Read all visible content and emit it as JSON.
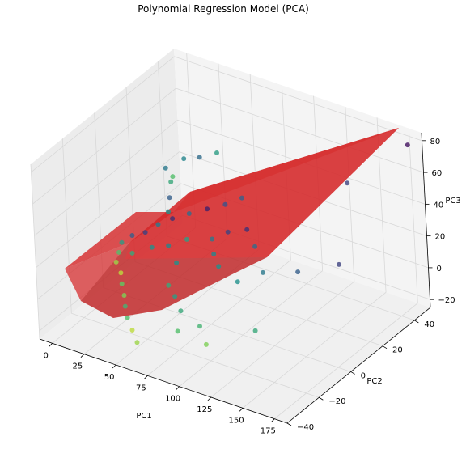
{
  "chart_data": {
    "type": "scatter",
    "title": "Polynomial Regression Model (PCA)",
    "xlabel": "PC1",
    "ylabel": "PC2",
    "zlabel": "PC3",
    "x_ticks": [
      "0",
      "25",
      "50",
      "75",
      "100",
      "125",
      "150",
      "175"
    ],
    "y_ticks": [
      "40",
      "20",
      "0",
      "−20",
      "−40"
    ],
    "z_ticks": [
      "80",
      "60",
      "40",
      "20",
      "0",
      "−20"
    ],
    "xlim": [
      -10,
      185
    ],
    "ylim": [
      -40,
      50
    ],
    "zlim": [
      -25,
      85
    ],
    "grid": true,
    "surface_color": "#d62728",
    "pane_color": "#f2f2f2",
    "points": [
      [
        0,
        5,
        2,
        0.55
      ],
      [
        2,
        10,
        3,
        0.3
      ],
      [
        4,
        0,
        1,
        0.7
      ],
      [
        6,
        15,
        2,
        0.2
      ],
      [
        8,
        -5,
        0,
        0.85
      ],
      [
        10,
        20,
        4,
        0.4
      ],
      [
        12,
        2,
        1,
        0.6
      ],
      [
        15,
        25,
        5,
        0.15
      ],
      [
        18,
        -10,
        0,
        0.9
      ],
      [
        20,
        8,
        2,
        0.5
      ],
      [
        22,
        30,
        6,
        0.35
      ],
      [
        25,
        -15,
        -1,
        0.75
      ],
      [
        28,
        12,
        2,
        0.45
      ],
      [
        30,
        35,
        7,
        0.1
      ],
      [
        33,
        -20,
        -2,
        0.8
      ],
      [
        35,
        18,
        3,
        0.55
      ],
      [
        38,
        40,
        8,
        0.25
      ],
      [
        40,
        -25,
        -3,
        0.65
      ],
      [
        43,
        5,
        1,
        0.5
      ],
      [
        45,
        45,
        10,
        0.3
      ],
      [
        48,
        -30,
        -4,
        0.7
      ],
      [
        50,
        22,
        4,
        0.4
      ],
      [
        53,
        -8,
        0,
        0.6
      ],
      [
        55,
        28,
        5,
        0.2
      ],
      [
        58,
        -35,
        -5,
        0.9
      ],
      [
        60,
        15,
        3,
        0.45
      ],
      [
        63,
        -12,
        -1,
        0.55
      ],
      [
        65,
        32,
        6,
        0.15
      ],
      [
        68,
        -40,
        -6,
        0.85
      ],
      [
        70,
        10,
        2,
        0.5
      ],
      [
        75,
        -18,
        -2,
        0.6
      ],
      [
        80,
        25,
        5,
        0.35
      ],
      [
        85,
        -28,
        -4,
        0.7
      ],
      [
        90,
        6,
        1,
        0.5
      ],
      [
        95,
        -22,
        -3,
        0.65
      ],
      [
        100,
        14,
        3,
        0.4
      ],
      [
        110,
        -30,
        -4,
        0.8
      ],
      [
        120,
        20,
        4,
        0.3
      ],
      [
        130,
        -15,
        -2,
        0.6
      ],
      [
        140,
        30,
        6,
        0.2
      ],
      [
        5,
        30,
        30,
        0.4
      ],
      [
        6,
        32,
        20,
        0.6
      ],
      [
        7,
        30,
        12,
        0.3
      ],
      [
        8,
        28,
        5,
        0.5
      ],
      [
        9,
        31,
        25,
        0.7
      ],
      [
        20,
        30,
        40,
        0.45
      ],
      [
        30,
        32,
        42,
        0.35
      ],
      [
        40,
        35,
        45,
        0.55
      ],
      [
        150,
        30,
        60,
        0.2
      ],
      [
        180,
        45,
        80,
        0.05
      ]
    ]
  }
}
